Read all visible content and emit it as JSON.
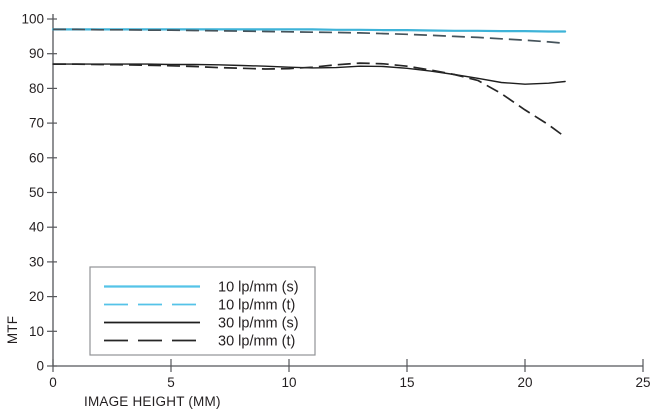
{
  "chart_data": {
    "type": "line",
    "title": "",
    "xlabel": "IMAGE HEIGHT (MM)",
    "ylabel": "MTF",
    "xlim": [
      0,
      25
    ],
    "ylim": [
      0,
      100
    ],
    "xticks": [
      0,
      5,
      10,
      15,
      20,
      25
    ],
    "yticks": [
      0,
      10,
      20,
      30,
      40,
      50,
      60,
      70,
      80,
      90,
      100
    ],
    "grid": false,
    "legend_position": "lower-left",
    "x": [
      0,
      1,
      2,
      3,
      4,
      5,
      6,
      7,
      8,
      9,
      10,
      11,
      12,
      13,
      14,
      15,
      16,
      17,
      18,
      19,
      20,
      21,
      21.7
    ],
    "series": [
      {
        "name": "10 lp/mm (s)",
        "style": "solid",
        "color": "#3eb3d8",
        "legend_color": "#55c3e8",
        "width": 2.2,
        "values": [
          97,
          97,
          97,
          97,
          97,
          97,
          97,
          97,
          97,
          97,
          97,
          97,
          96.9,
          96.9,
          96.8,
          96.8,
          96.7,
          96.6,
          96.6,
          96.5,
          96.5,
          96.4,
          96.4
        ]
      },
      {
        "name": "10 lp/mm (t)",
        "style": "dashed",
        "color": "#45535b",
        "legend_color": "#55c3e8",
        "width": 1.7,
        "values": [
          97,
          97,
          96.9,
          96.9,
          96.8,
          96.8,
          96.7,
          96.6,
          96.5,
          96.4,
          96.3,
          96.2,
          96.1,
          96,
          95.8,
          95.6,
          95.3,
          95,
          94.7,
          94.3,
          93.9,
          93.4,
          93
        ]
      },
      {
        "name": "30 lp/mm (s)",
        "style": "solid",
        "color": "#1e1e1e",
        "legend_color": "#1e1e1e",
        "width": 1.4,
        "values": [
          87,
          87,
          87,
          87,
          87,
          86.9,
          86.9,
          86.8,
          86.6,
          86.4,
          86.1,
          85.9,
          86,
          86.4,
          86.3,
          85.8,
          85,
          84,
          82.9,
          81.7,
          81.2,
          81.5,
          82
        ]
      },
      {
        "name": "30 lp/mm (t)",
        "style": "dashed",
        "color": "#262626",
        "legend_color": "#262626",
        "width": 1.7,
        "values": [
          87,
          87,
          86.9,
          86.8,
          86.7,
          86.5,
          86.3,
          86,
          85.8,
          85.6,
          85.7,
          86.1,
          86.8,
          87.3,
          87.1,
          86.4,
          85.3,
          84,
          82.3,
          78.5,
          73.8,
          69.5,
          66
        ]
      }
    ],
    "colors": {
      "axis": "#55565a",
      "tick_text": "#231f20",
      "legend_border": "#919396",
      "background": "#ffffff"
    }
  }
}
